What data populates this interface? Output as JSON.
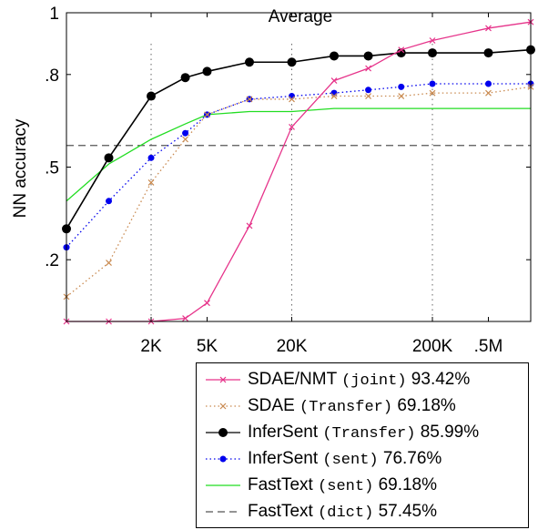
{
  "chart_data": {
    "type": "line",
    "title": "Average",
    "ylabel": "NN accuracy",
    "xlabel": "",
    "x_scale": "log",
    "x": [
      500,
      1000,
      2000,
      3500,
      5000,
      10000,
      20000,
      40000,
      70000,
      120000,
      200000,
      500000,
      1000000
    ],
    "xticks": [
      {
        "value": 2000,
        "label": "2K"
      },
      {
        "value": 5000,
        "label": "5K"
      },
      {
        "value": 20000,
        "label": "20K"
      },
      {
        "value": 200000,
        "label": "200K"
      },
      {
        "value": 500000,
        "label": ".5M"
      }
    ],
    "xlim": [
      500,
      1000000
    ],
    "yticks": [
      {
        "value": 0.2,
        "label": ".2"
      },
      {
        "value": 0.5,
        "label": ".5"
      },
      {
        "value": 0.8,
        "label": ".8"
      },
      {
        "value": 1.0,
        "label": "1"
      }
    ],
    "ylim": [
      0.0,
      1.0
    ],
    "vgrid": [
      2000,
      20000,
      200000
    ],
    "grid": "dotted vertical lines at 2K, 20K, 200K",
    "legend_position": "bottom-right, outside",
    "series": [
      {
        "name": "SDAE/NMT",
        "tag": "(joint)",
        "score": "93.42%",
        "color": "#e6338a",
        "style": "solid",
        "marker": "x",
        "values": [
          0.0,
          0.0,
          0.0,
          0.01,
          0.06,
          0.31,
          0.63,
          0.78,
          0.82,
          0.88,
          0.91,
          0.95,
          0.97
        ]
      },
      {
        "name": "SDAE",
        "tag": "(Transfer)",
        "score": "69.18%",
        "color": "#c98a50",
        "style": "dotted",
        "marker": "x",
        "values": [
          0.08,
          0.19,
          0.45,
          0.59,
          0.67,
          0.72,
          0.72,
          0.73,
          0.73,
          0.73,
          0.74,
          0.74,
          0.76
        ]
      },
      {
        "name": "InferSent",
        "tag": "(Transfer)",
        "score": "85.99%",
        "color": "#000000",
        "style": "solid",
        "marker": "dot",
        "values": [
          0.3,
          0.53,
          0.73,
          0.79,
          0.81,
          0.84,
          0.84,
          0.86,
          0.86,
          0.87,
          0.87,
          0.87,
          0.88
        ]
      },
      {
        "name": "InferSent",
        "tag": "(sent)",
        "score": "76.76%",
        "color": "#0000ee",
        "style": "dotted",
        "marker": "dot",
        "values": [
          0.24,
          0.39,
          0.53,
          0.61,
          0.67,
          0.72,
          0.73,
          0.74,
          0.75,
          0.76,
          0.77,
          0.77,
          0.77
        ]
      },
      {
        "name": "FastText",
        "tag": "(sent)",
        "score": "69.18%",
        "color": "#22dd22",
        "style": "solid",
        "marker": "none",
        "values": [
          0.39,
          0.51,
          0.59,
          0.64,
          0.67,
          0.68,
          0.68,
          0.69,
          0.69,
          0.69,
          0.69,
          0.69,
          0.69
        ]
      },
      {
        "name": "FastText",
        "tag": "(dict)",
        "score": "57.45%",
        "color": "#555555",
        "style": "dashed",
        "marker": "none",
        "values": [
          0.57,
          0.57,
          0.57,
          0.57,
          0.57,
          0.57,
          0.57,
          0.57,
          0.57,
          0.57,
          0.57,
          0.57,
          0.57
        ]
      }
    ]
  }
}
